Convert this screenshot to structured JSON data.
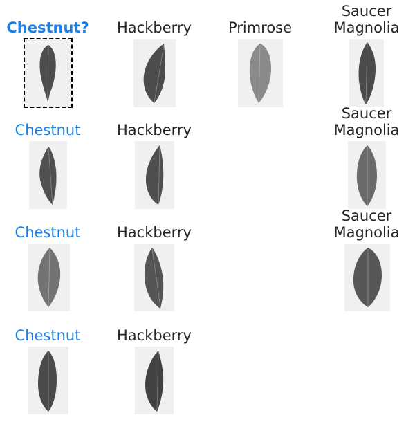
{
  "query": {
    "label": "Chestnut?"
  },
  "columns": [
    {
      "name": "chestnut",
      "labels": [
        "Chestnut",
        "Chestnut",
        "Chestnut"
      ]
    },
    {
      "name": "hackberry",
      "labels": [
        "Hackberry",
        "Hackberry",
        "Hackberry",
        "Hackberry"
      ]
    },
    {
      "name": "primrose",
      "labels": [
        "Primrose"
      ]
    },
    {
      "name": "saucer-magnolia",
      "labels": [
        "Saucer Magnolia",
        "Saucer Magnolia",
        "Saucer Magnolia"
      ]
    }
  ],
  "colors": {
    "highlight": "#1a7fe6",
    "text": "#262626",
    "thumb_bg": "#f0f0f0"
  }
}
